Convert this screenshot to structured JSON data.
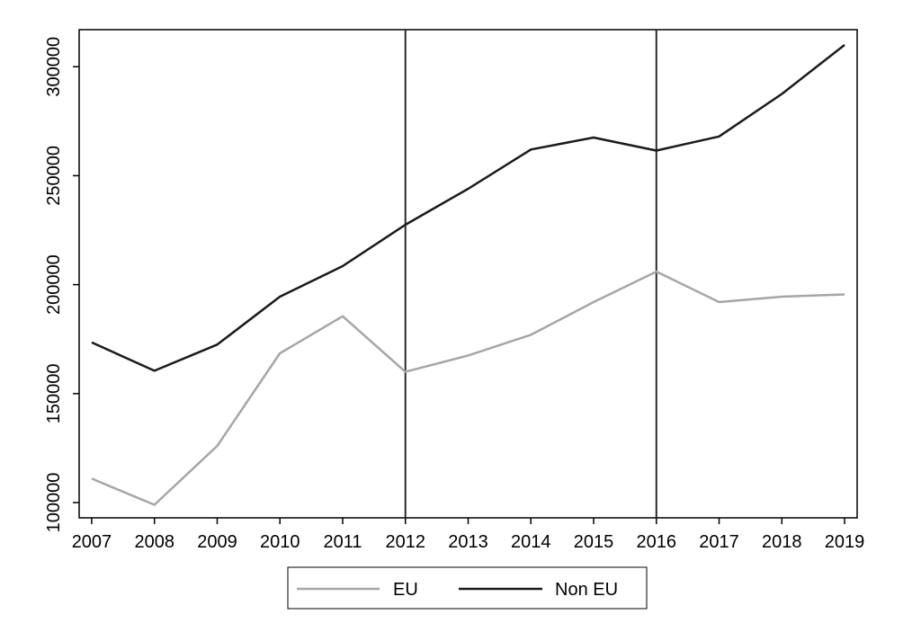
{
  "chart_data": {
    "type": "line",
    "title": "",
    "xlabel": "",
    "ylabel": "",
    "x": [
      2007,
      2008,
      2009,
      2010,
      2011,
      2012,
      2013,
      2014,
      2015,
      2016,
      2017,
      2018,
      2019
    ],
    "xlim": [
      2006.8,
      2019.2
    ],
    "ylim": [
      93000,
      317000
    ],
    "y_ticks": [
      100000,
      150000,
      200000,
      250000,
      300000
    ],
    "y_tick_labels": [
      "100000",
      "150000",
      "200000",
      "250000",
      "300000"
    ],
    "x_tick_labels": [
      "2007",
      "2008",
      "2009",
      "2010",
      "2011",
      "2012",
      "2013",
      "2014",
      "2015",
      "2016",
      "2017",
      "2018",
      "2019"
    ],
    "vertical_lines": [
      2012,
      2016
    ],
    "grid": false,
    "legend_position": "bottom",
    "series": [
      {
        "name": "EU",
        "color": "#a6a6a6",
        "values": [
          111000,
          99000,
          126000,
          168500,
          185500,
          160000,
          167500,
          177000,
          192000,
          206000,
          192000,
          194500,
          195500
        ]
      },
      {
        "name": "Non EU",
        "color": "#1a1a1a",
        "values": [
          173500,
          160500,
          172500,
          194500,
          208500,
          227500,
          244000,
          262000,
          267500,
          261500,
          268000,
          287500,
          310000
        ]
      }
    ]
  }
}
